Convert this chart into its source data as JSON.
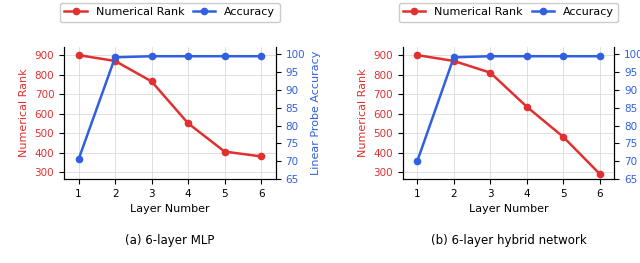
{
  "left": {
    "layers": [
      1,
      2,
      3,
      4,
      5,
      6
    ],
    "numerical_rank": [
      900,
      870,
      765,
      550,
      405,
      380
    ],
    "accuracy": [
      70.5,
      99.2,
      99.5,
      99.5,
      99.5,
      99.5
    ],
    "title": "(a) 6-layer MLP"
  },
  "right": {
    "layers": [
      1,
      2,
      3,
      4,
      5,
      6
    ],
    "numerical_rank": [
      900,
      870,
      810,
      635,
      480,
      290
    ],
    "accuracy": [
      70.0,
      99.2,
      99.5,
      99.5,
      99.5,
      99.5
    ],
    "title": "(b) 6-layer hybrid network"
  },
  "rank_color": "#e03030",
  "acc_color": "#3060e0",
  "rank_label": "Numerical Rank",
  "acc_label": "Accuracy",
  "xlabel": "Layer Number",
  "ylabel_left": "Numerical Rank",
  "ylabel_right": "Linear Probe Accuracy",
  "ylim_rank": [
    265,
    940
  ],
  "yticks_rank": [
    300,
    400,
    500,
    600,
    700,
    800,
    900
  ],
  "ylim_acc": [
    65,
    102
  ],
  "yticks_acc": [
    65,
    70,
    75,
    80,
    85,
    90,
    95,
    100
  ],
  "marker": "o",
  "markersize": 4.5,
  "linewidth": 1.8,
  "label_fontsize": 8,
  "tick_fontsize": 7.5,
  "legend_fontsize": 8,
  "caption_fontsize": 8.5
}
